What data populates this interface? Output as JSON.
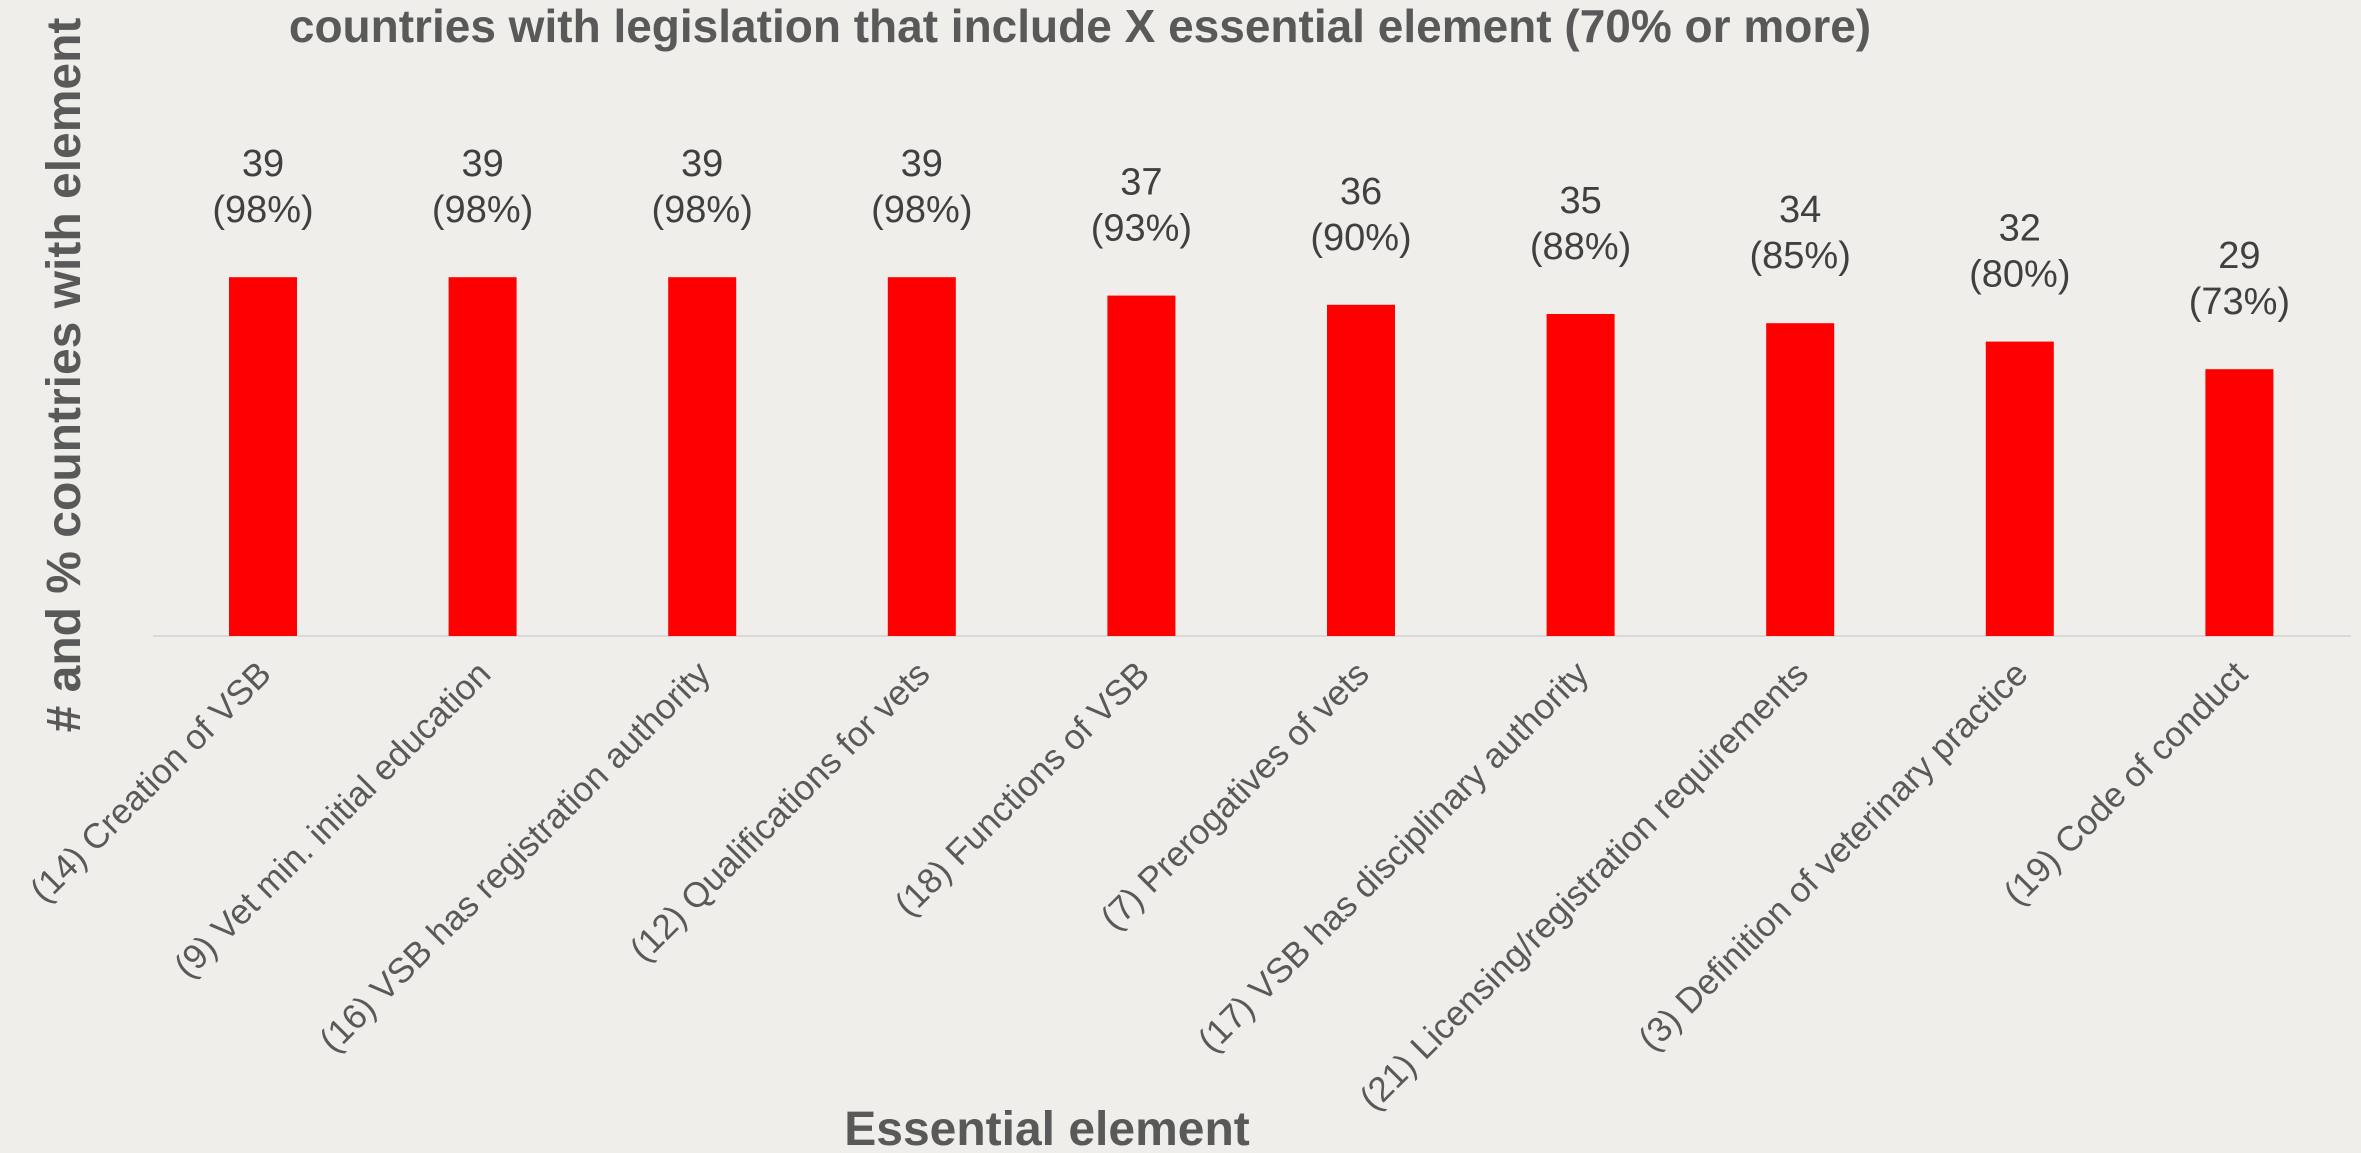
{
  "chart_data": {
    "type": "bar",
    "title": "countries with legislation that include X essential element (70% or more)",
    "xlabel": "Essential element",
    "ylabel": "# and % countries with element",
    "categories": [
      "(14) Creation of VSB",
      "(9) Vet min. initial education",
      "(16) VSB has registration authority",
      "(12) Qualifications for vets",
      "(18) Functions of VSB",
      "(7) Prerogatives of vets",
      "(17) VSB has disciplinary authority",
      "(21) Licensing/registration requirements",
      "(3) Definition of veterinary practice",
      "(19) Code of conduct"
    ],
    "values": [
      39,
      39,
      39,
      39,
      37,
      36,
      35,
      34,
      32,
      29
    ],
    "percent_labels": [
      "(98%)",
      "(98%)",
      "(98%)",
      "(98%)",
      "(93%)",
      "(90%)",
      "(88%)",
      "(85%)",
      "(80%)",
      "(73%)"
    ],
    "bar_color": "#ff0000",
    "grid": false,
    "legend": "none"
  }
}
